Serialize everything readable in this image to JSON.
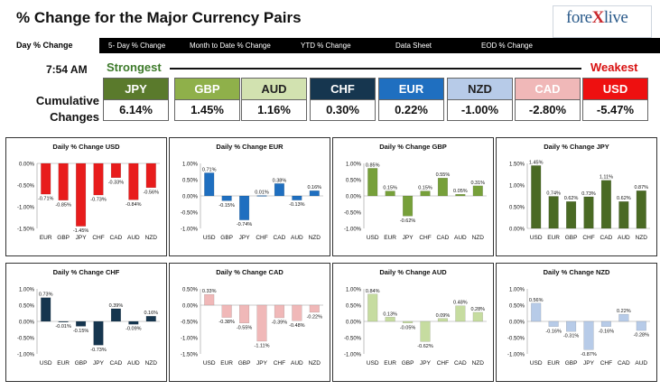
{
  "header": {
    "title": "% Change for the Major Currency Pairs",
    "logo_text_a": "fore",
    "logo_text_x": "X",
    "logo_text_b": "live"
  },
  "nav": [
    "Day % Change",
    "5- Day % Change",
    "Month to Date % Change",
    "YTD % Change",
    "Data Sheet",
    "EOD % Change"
  ],
  "ranking": {
    "time": "7:54 AM",
    "strongest_label": "Strongest",
    "weakest_label": "Weakest",
    "row_label_1": "Cumulative",
    "row_label_2": "Changes",
    "items": [
      {
        "name": "JPY",
        "value": "6.14%",
        "bg": "#5a7a2c",
        "fg": "#ffffff"
      },
      {
        "name": "GBP",
        "value": "1.45%",
        "bg": "#8fb04a",
        "fg": "#ffffff"
      },
      {
        "name": "AUD",
        "value": "1.16%",
        "bg": "#d2e2b0",
        "fg": "#222222"
      },
      {
        "name": "CHF",
        "value": "0.30%",
        "bg": "#16364f",
        "fg": "#ffffff"
      },
      {
        "name": "EUR",
        "value": "0.22%",
        "bg": "#1f6fc0",
        "fg": "#ffffff"
      },
      {
        "name": "NZD",
        "value": "-1.00%",
        "bg": "#b7cbe8",
        "fg": "#222222"
      },
      {
        "name": "CAD",
        "value": "-2.80%",
        "bg": "#f0b8b8",
        "fg": "#ffffff"
      },
      {
        "name": "USD",
        "value": "-5.47%",
        "bg": "#ee1010",
        "fg": "#ffffff"
      }
    ]
  },
  "chart_data": [
    {
      "type": "bar",
      "title": "Daily % Change USD",
      "categories": [
        "EUR",
        "GBP",
        "JPY",
        "CHF",
        "CAD",
        "AUD",
        "NZD"
      ],
      "values": [
        -0.71,
        -0.85,
        -1.45,
        -0.73,
        -0.33,
        -0.84,
        -0.56
      ],
      "labels": [
        "-0.71%",
        "-0.85%",
        "-1.45%",
        "-0.73%",
        "-0.33%",
        "-0.84%",
        "-0.56%"
      ],
      "ylim": [
        -1.5,
        0
      ],
      "ticks": [
        "0.00%",
        "-0.50%",
        "-1.00%",
        "-1.50%"
      ],
      "tickvals": [
        0,
        -0.5,
        -1,
        -1.5
      ],
      "color": "#e81c1c"
    },
    {
      "type": "bar",
      "title": "Daily % Change EUR",
      "categories": [
        "USD",
        "GBP",
        "JPY",
        "CHF",
        "CAD",
        "AUD",
        "NZD"
      ],
      "values": [
        0.71,
        -0.15,
        -0.74,
        0.01,
        0.38,
        -0.13,
        0.16
      ],
      "labels": [
        "0.71%",
        "-0.15%",
        "-0.74%",
        "0.01%",
        "0.38%",
        "-0.13%",
        "0.16%"
      ],
      "ylim": [
        -1.0,
        1.0
      ],
      "ticks": [
        "1.00%",
        "0.50%",
        "0.00%",
        "-0.50%",
        "-1.00%"
      ],
      "tickvals": [
        1,
        0.5,
        0,
        -0.5,
        -1
      ],
      "color": "#1f6fc0"
    },
    {
      "type": "bar",
      "title": "Daily % Change GBP",
      "categories": [
        "USD",
        "EUR",
        "JPY",
        "CHF",
        "CAD",
        "AUD",
        "NZD"
      ],
      "values": [
        0.85,
        0.15,
        -0.62,
        0.15,
        0.55,
        0.05,
        0.31
      ],
      "labels": [
        "0.85%",
        "0.15%",
        "-0.62%",
        "0.15%",
        "0.55%",
        "0.05%",
        "0.31%"
      ],
      "ylim": [
        -1.0,
        1.0
      ],
      "ticks": [
        "1.00%",
        "0.50%",
        "0.00%",
        "-0.50%",
        "-1.00%"
      ],
      "tickvals": [
        1,
        0.5,
        0,
        -0.5,
        -1
      ],
      "color": "#77a03a"
    },
    {
      "type": "bar",
      "title": "Daily % Change JPY",
      "categories": [
        "USD",
        "EUR",
        "GBP",
        "CHF",
        "CAD",
        "AUD",
        "NZD"
      ],
      "values": [
        1.45,
        0.74,
        0.62,
        0.73,
        1.11,
        0.62,
        0.87
      ],
      "labels": [
        "1.45%",
        "0.74%",
        "0.62%",
        "0.73%",
        "1.11%",
        "0.62%",
        "0.87%"
      ],
      "ylim": [
        0,
        1.5
      ],
      "ticks": [
        "1.50%",
        "1.00%",
        "0.50%",
        "0.00%"
      ],
      "tickvals": [
        1.5,
        1,
        0.5,
        0
      ],
      "color": "#4a6a24"
    },
    {
      "type": "bar",
      "title": "Daily % Change CHF",
      "categories": [
        "USD",
        "EUR",
        "GBP",
        "JPY",
        "CAD",
        "AUD",
        "NZD"
      ],
      "values": [
        0.73,
        -0.01,
        -0.15,
        -0.73,
        0.39,
        -0.09,
        0.16
      ],
      "labels": [
        "0.73%",
        "-0.01%",
        "-0.15%",
        "-0.73%",
        "0.39%",
        "-0.09%",
        "0.16%"
      ],
      "ylim": [
        -1.0,
        1.0
      ],
      "ticks": [
        "1.00%",
        "0.50%",
        "0.00%",
        "-0.50%",
        "-1.00%"
      ],
      "tickvals": [
        1,
        0.5,
        0,
        -0.5,
        -1
      ],
      "color": "#16364f"
    },
    {
      "type": "bar",
      "title": "Daily % Change CAD",
      "categories": [
        "USD",
        "EUR",
        "GBP",
        "JPY",
        "CHF",
        "AUD",
        "NZD"
      ],
      "values": [
        0.33,
        -0.38,
        -0.55,
        -1.11,
        -0.39,
        -0.48,
        -0.22
      ],
      "labels": [
        "0.33%",
        "-0.38%",
        "-0.55%",
        "-1.11%",
        "-0.39%",
        "-0.48%",
        "-0.22%"
      ],
      "ylim": [
        -1.5,
        0.5
      ],
      "ticks": [
        "0.50%",
        "0.00%",
        "-0.50%",
        "-1.00%",
        "-1.50%"
      ],
      "tickvals": [
        0.5,
        0,
        -0.5,
        -1,
        -1.5
      ],
      "color": "#f0b8b8"
    },
    {
      "type": "bar",
      "title": "Daily % Change AUD",
      "categories": [
        "USD",
        "EUR",
        "GBP",
        "JPY",
        "CHF",
        "CAD",
        "NZD"
      ],
      "values": [
        0.84,
        0.13,
        -0.05,
        -0.62,
        0.09,
        0.48,
        0.28
      ],
      "labels": [
        "0.84%",
        "0.13%",
        "-0.05%",
        "-0.62%",
        "0.09%",
        "0.48%",
        "0.28%"
      ],
      "ylim": [
        -1.0,
        1.0
      ],
      "ticks": [
        "1.00%",
        "0.50%",
        "0.00%",
        "-0.50%",
        "-1.00%"
      ],
      "tickvals": [
        1,
        0.5,
        0,
        -0.5,
        -1
      ],
      "color": "#c6dca0"
    },
    {
      "type": "bar",
      "title": "Daily % Change NZD",
      "categories": [
        "USD",
        "EUR",
        "GBP",
        "JPY",
        "CHF",
        "CAD",
        "AUD"
      ],
      "values": [
        0.56,
        -0.16,
        -0.31,
        -0.87,
        -0.16,
        0.22,
        -0.28
      ],
      "labels": [
        "0.56%",
        "-0.16%",
        "-0.31%",
        "-0.87%",
        "-0.16%",
        "0.22%",
        "-0.28%"
      ],
      "ylim": [
        -1.0,
        1.0
      ],
      "ticks": [
        "1.00%",
        "0.50%",
        "0.00%",
        "-0.50%",
        "-1.00%"
      ],
      "tickvals": [
        1,
        0.5,
        0,
        -0.5,
        -1
      ],
      "color": "#b7cbe8"
    }
  ]
}
